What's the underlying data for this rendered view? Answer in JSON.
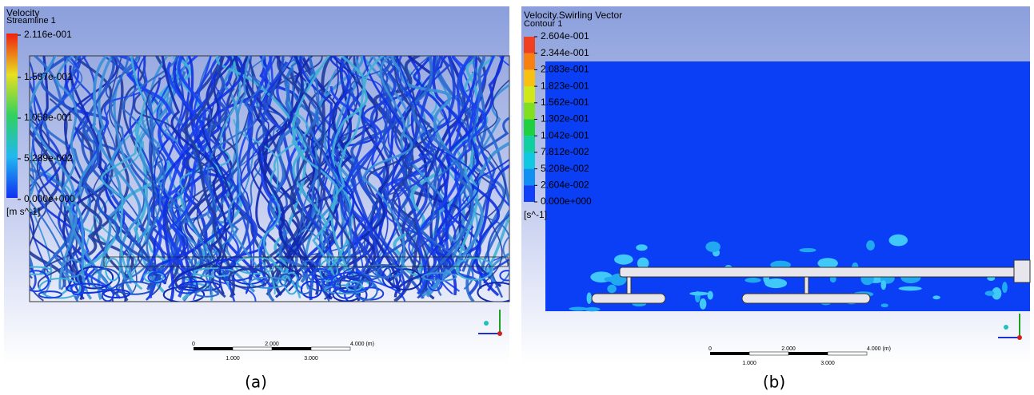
{
  "panels": [
    {
      "title": "Velocity",
      "subtitle": "Streamline 1",
      "legend_labels": [
        "2.116e-001",
        "1.587e-001",
        "1.058e-001",
        "5.289e-002",
        "0.000e+000"
      ],
      "unit": "[m s^-1]",
      "scale_labels_top": [
        "0",
        "2.000",
        "4.000 (m)"
      ],
      "scale_labels_bottom": [
        "1.000",
        "3.000"
      ],
      "caption": "(a)"
    },
    {
      "title": "Velocity.Swirling Vector",
      "subtitle": "Contour 1",
      "legend_labels": [
        "2.604e-001",
        "2.344e-001",
        "2.083e-001",
        "1.823e-001",
        "1.562e-001",
        "1.302e-001",
        "1.042e-001",
        "7.812e-002",
        "5.208e-002",
        "2.604e-002",
        "0.000e+000"
      ],
      "unit": "[s^-1]",
      "scale_labels_top": [
        "0",
        "2.000",
        "4.000 (m)"
      ],
      "scale_labels_bottom": [
        "1.000",
        "3.000"
      ],
      "caption": "(b)"
    }
  ]
}
